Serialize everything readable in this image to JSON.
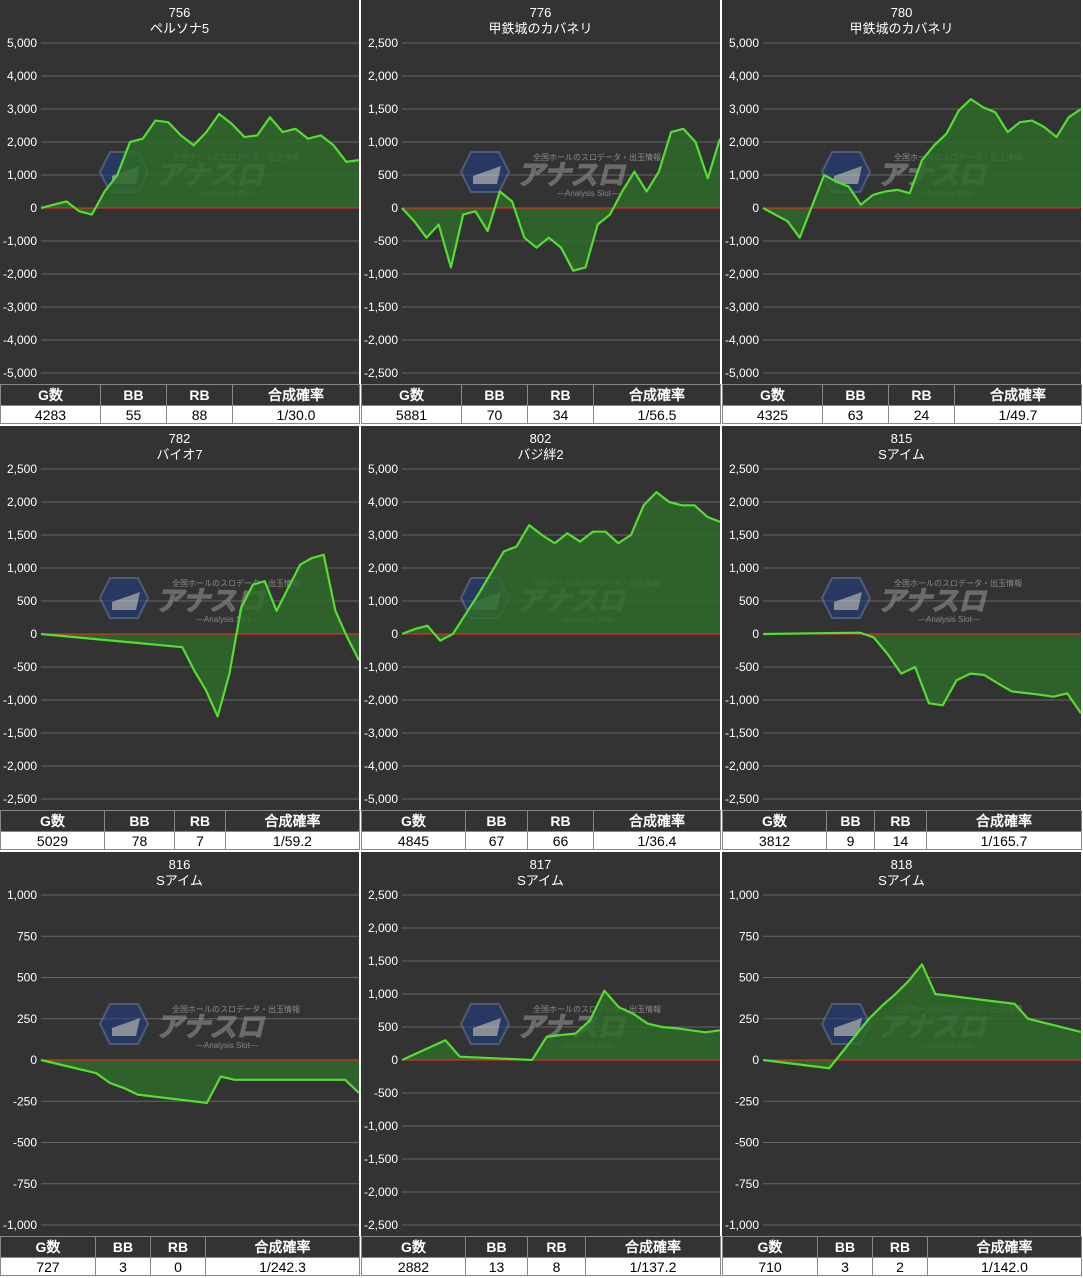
{
  "watermark": {
    "brand": "アナスロ",
    "tagline": "全国ホールのスロデータ・出玉情報",
    "sub": "Analysis Slot"
  },
  "colors": {
    "background": "#333333",
    "grid": "#666666",
    "zero_line": "#ff2a2a",
    "line": "#55dd33",
    "fill": "#2f6b2a"
  },
  "stat_headers": [
    "G数",
    "BB",
    "RB",
    "合成確率"
  ],
  "chart_data": [
    {
      "type": "area",
      "number": "756",
      "machine": "ペルソナ5",
      "ylim": [
        -5000,
        5000
      ],
      "yticks": [
        "5,000",
        "4,000",
        "3,000",
        "2,000",
        "1,000",
        "0",
        "-1,000",
        "-2,000",
        "-3,000",
        "-4,000",
        "-5,000"
      ],
      "values": [
        0,
        100,
        200,
        -100,
        -200,
        500,
        1000,
        2000,
        2100,
        2650,
        2600,
        2200,
        1900,
        2300,
        2850,
        2550,
        2150,
        2200,
        2750,
        2300,
        2400,
        2100,
        2200,
        1900,
        1400,
        1450
      ],
      "stats": {
        "g": "4283",
        "bb": "55",
        "rb": "88",
        "rate": "1/30.0"
      }
    },
    {
      "type": "area",
      "number": "776",
      "machine": "甲鉄城のカバネリ",
      "ylim": [
        -2500,
        2500
      ],
      "yticks": [
        "2,500",
        "2,000",
        "1,500",
        "1,000",
        "500",
        "0",
        "-500",
        "-1,000",
        "-1,500",
        "-2,000",
        "-2,500"
      ],
      "values": [
        0,
        -200,
        -450,
        -250,
        -900,
        -100,
        -50,
        -350,
        250,
        100,
        -450,
        -600,
        -450,
        -600,
        -950,
        -900,
        -250,
        -100,
        250,
        550,
        250,
        550,
        1150,
        1200,
        1000,
        450,
        1050
      ],
      "stats": {
        "g": "5881",
        "bb": "70",
        "rb": "34",
        "rate": "1/56.5"
      }
    },
    {
      "type": "area",
      "number": "780",
      "machine": "甲鉄城のカバネリ",
      "ylim": [
        -5000,
        5000
      ],
      "yticks": [
        "5,000",
        "4,000",
        "3,000",
        "2,000",
        "1,000",
        "0",
        "-1,000",
        "-2,000",
        "-3,000",
        "-4,000",
        "-5,000"
      ],
      "values": [
        0,
        -200,
        -400,
        -900,
        50,
        1000,
        800,
        650,
        100,
        400,
        500,
        550,
        450,
        1450,
        1900,
        2250,
        2950,
        3300,
        3050,
        2900,
        2300,
        2600,
        2650,
        2450,
        2150,
        2750,
        3000
      ],
      "stats": {
        "g": "4325",
        "bb": "63",
        "rb": "24",
        "rate": "1/49.7"
      }
    },
    {
      "type": "area",
      "number": "782",
      "machine": "バイオ7",
      "ylim": [
        -2500,
        2500
      ],
      "yticks": [
        "2,500",
        "2,000",
        "1,500",
        "1,000",
        "500",
        "0",
        "-500",
        "-1,000",
        "-1,500",
        "-2,000",
        "-2,500"
      ],
      "x": [
        0,
        12,
        13,
        14,
        15,
        16,
        17,
        18,
        19,
        20,
        21,
        22,
        23,
        24,
        25,
        26,
        27
      ],
      "values": [
        0,
        -200,
        -550,
        -850,
        -1250,
        -600,
        400,
        750,
        800,
        350,
        700,
        1050,
        1150,
        1200,
        350,
        -50,
        -400
      ],
      "stats": {
        "g": "5029",
        "bb": "78",
        "rb": "7",
        "rate": "1/59.2"
      }
    },
    {
      "type": "area",
      "number": "802",
      "machine": "バジ絆2",
      "ylim": [
        -5000,
        5000
      ],
      "yticks": [
        "5,000",
        "4,000",
        "3,000",
        "2,000",
        "1,000",
        "0",
        "-1,000",
        "-2,000",
        "-3,000",
        "-4,000",
        "-5,000"
      ],
      "values": [
        0,
        150,
        250,
        -200,
        0,
        600,
        1200,
        1850,
        2500,
        2650,
        3300,
        3000,
        2750,
        3050,
        2800,
        3100,
        3100,
        2750,
        3000,
        3900,
        4300,
        4000,
        3900,
        3900,
        3550,
        3400
      ],
      "stats": {
        "g": "4845",
        "bb": "67",
        "rb": "66",
        "rate": "1/36.4"
      }
    },
    {
      "type": "area",
      "number": "815",
      "machine": "Sアイム",
      "ylim": [
        -2500,
        2500
      ],
      "yticks": [
        "2,500",
        "2,000",
        "1,500",
        "1,000",
        "500",
        "0",
        "-500",
        "-1,000",
        "-1,500",
        "-2,000",
        "-2,500"
      ],
      "x": [
        0,
        7,
        8,
        9,
        10,
        11,
        12,
        13,
        14,
        15,
        16,
        17,
        18,
        20,
        21,
        22,
        23
      ],
      "values": [
        0,
        20,
        -50,
        -300,
        -600,
        -500,
        -1050,
        -1080,
        -700,
        -600,
        -620,
        -750,
        -870,
        -920,
        -950,
        -900,
        -1200
      ],
      "stats": {
        "g": "3812",
        "bb": "9",
        "rb": "14",
        "rate": "1/165.7"
      }
    },
    {
      "type": "area",
      "number": "816",
      "machine": "Sアイム",
      "ylim": [
        -1000,
        1000
      ],
      "yticks": [
        "1,000",
        "750",
        "500",
        "250",
        "0",
        "-250",
        "-500",
        "-750",
        "-1,000"
      ],
      "x": [
        0,
        4,
        5,
        6,
        7,
        12,
        13,
        14,
        15,
        16,
        17,
        18,
        19,
        20,
        21,
        22,
        23
      ],
      "values": [
        0,
        -80,
        -140,
        -170,
        -210,
        -260,
        -100,
        -120,
        -120,
        -120,
        -120,
        -120,
        -120,
        -120,
        -120,
        -120,
        -200
      ],
      "stats": {
        "g": "727",
        "bb": "3",
        "rb": "0",
        "rate": "1/242.3"
      }
    },
    {
      "type": "area",
      "number": "817",
      "machine": "Sアイム",
      "ylim": [
        -2500,
        2500
      ],
      "yticks": [
        "2,500",
        "2,000",
        "1,500",
        "1,000",
        "500",
        "0",
        "-500",
        "-1,000",
        "-1,500",
        "-2,000",
        "-2,500"
      ],
      "x": [
        0,
        3,
        4,
        9,
        10,
        11,
        12,
        13,
        14,
        15,
        16,
        17,
        18,
        19,
        20,
        21,
        22
      ],
      "values": [
        0,
        300,
        50,
        0,
        350,
        380,
        400,
        600,
        1050,
        800,
        700,
        550,
        500,
        480,
        450,
        420,
        450
      ],
      "stats": {
        "g": "2882",
        "bb": "13",
        "rb": "8",
        "rate": "1/137.2"
      }
    },
    {
      "type": "area",
      "number": "818",
      "machine": "Sアイム",
      "ylim": [
        -1000,
        1000
      ],
      "yticks": [
        "1,000",
        "750",
        "500",
        "250",
        "0",
        "-250",
        "-500",
        "-750",
        "-1,000"
      ],
      "x": [
        0,
        5,
        6,
        7,
        8,
        9,
        10,
        11,
        12,
        13,
        14,
        15,
        16,
        17,
        18,
        19,
        20,
        21,
        22,
        23,
        24
      ],
      "values": [
        0,
        -50,
        50,
        150,
        250,
        330,
        400,
        480,
        580,
        400,
        390,
        380,
        370,
        360,
        350,
        340,
        250,
        230,
        210,
        190,
        170
      ],
      "stats": {
        "g": "710",
        "bb": "3",
        "rb": "2",
        "rate": "1/142.0"
      }
    }
  ]
}
